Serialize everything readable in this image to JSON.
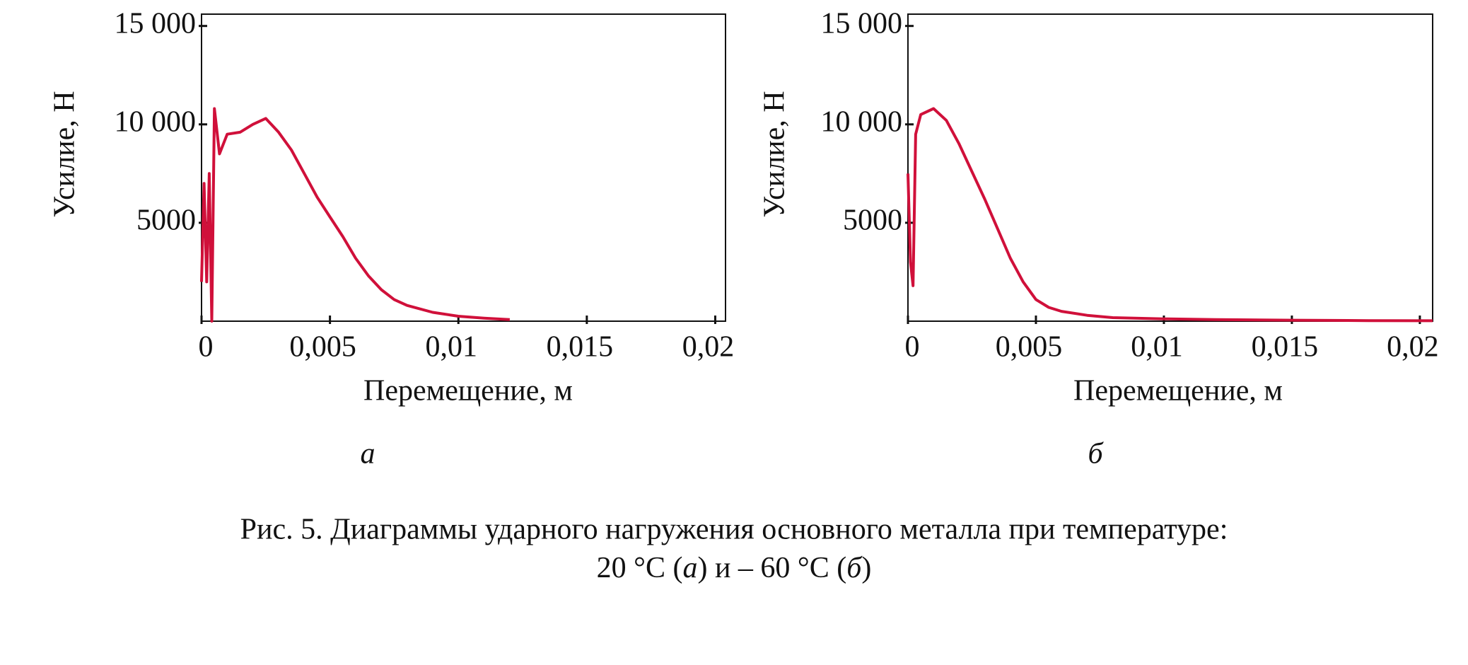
{
  "chart_data": [
    {
      "type": "line",
      "panel": "а",
      "ylabel": "Усилие, Н",
      "xlabel": "Перемещение, м",
      "color": "#d0103a",
      "xlim": [
        0,
        0.0204
      ],
      "ylim": [
        0,
        15600
      ],
      "xticks": [
        0,
        {
          "value": 0.005,
          "label": "0,005"
        },
        {
          "value": 0.01,
          "label": "0,01"
        },
        {
          "value": 0.015,
          "label": "0,015"
        },
        {
          "value": 0.02,
          "label": "0,02"
        }
      ],
      "yticks": [
        5000,
        {
          "value": 10000,
          "label": "10 000"
        },
        {
          "value": 15000,
          "label": "15 000"
        }
      ],
      "series": [
        {
          "x": [
            0,
            0.0001,
            0.0002,
            0.0003,
            0.0004,
            0.0005,
            0.0007,
            0.001,
            0.0015,
            0.002,
            0.0025,
            0.003,
            0.0035,
            0.004,
            0.0045,
            0.005,
            0.0055,
            0.006,
            0.0065,
            0.007,
            0.0075,
            0.008,
            0.009,
            0.01,
            0.011,
            0.012
          ],
          "values": [
            2000,
            7000,
            2000,
            7500,
            0,
            10800,
            8500,
            9500,
            9600,
            10000,
            10300,
            9600,
            8700,
            7500,
            6300,
            5300,
            4300,
            3200,
            2300,
            1600,
            1100,
            800,
            450,
            250,
            150,
            80
          ]
        }
      ]
    },
    {
      "type": "line",
      "panel": "б",
      "ylabel": "Усилие, Н",
      "xlabel": "Перемещение, м",
      "color": "#d0103a",
      "xlim": [
        0,
        0.0205
      ],
      "ylim": [
        0,
        15600
      ],
      "xticks": [
        0,
        {
          "value": 0.005,
          "label": "0,005"
        },
        {
          "value": 0.01,
          "label": "0,01"
        },
        {
          "value": 0.015,
          "label": "0,015"
        },
        {
          "value": 0.02,
          "label": "0,02"
        }
      ],
      "yticks": [
        5000,
        {
          "value": 10000,
          "label": "10 000"
        },
        {
          "value": 15000,
          "label": "15 000"
        }
      ],
      "series": [
        {
          "x": [
            0,
            0.0001,
            0.0002,
            0.0003,
            0.0005,
            0.001,
            0.0015,
            0.002,
            0.0025,
            0.003,
            0.0035,
            0.004,
            0.0045,
            0.005,
            0.0055,
            0.006,
            0.007,
            0.008,
            0.01,
            0.012,
            0.015,
            0.018,
            0.0205
          ],
          "values": [
            7500,
            3000,
            1800,
            9500,
            10500,
            10800,
            10200,
            9000,
            7600,
            6200,
            4700,
            3200,
            2000,
            1100,
            700,
            500,
            300,
            180,
            120,
            80,
            50,
            30,
            20
          ]
        }
      ]
    }
  ],
  "caption": {
    "line1": "Рис. 5. Диаграммы ударного нагружения основного металла при температуре:",
    "line2": [
      {
        "text": "20 °C (",
        "italic": false
      },
      {
        "text": "а",
        "italic": true
      },
      {
        "text": ") и – 60 °C (",
        "italic": false
      },
      {
        "text": "б",
        "italic": true
      },
      {
        "text": ")",
        "italic": false
      }
    ]
  }
}
